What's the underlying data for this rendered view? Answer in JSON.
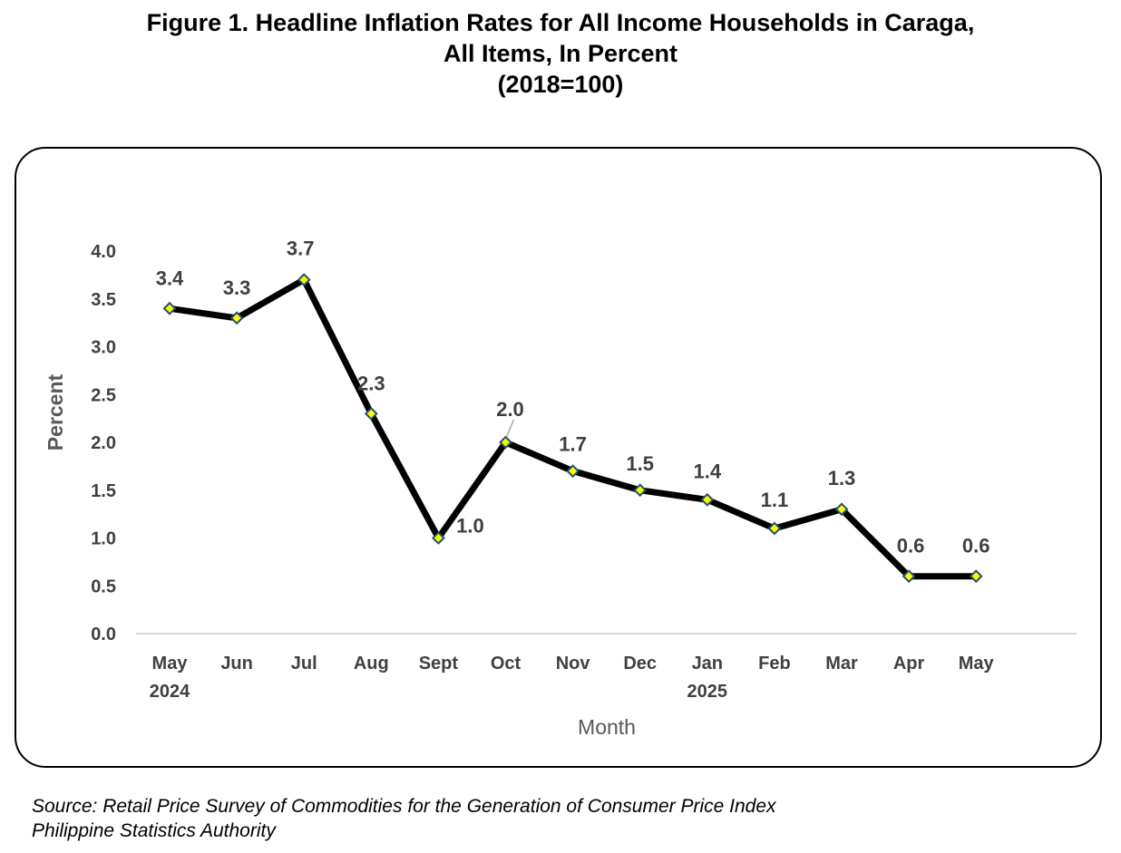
{
  "title": {
    "line1": "Figure 1. Headline Inflation Rates for All Income Households in Caraga,",
    "line2": "All Items, In Percent",
    "line3": "(2018=100)"
  },
  "source": {
    "line1": "Source: Retail Price Survey of Commodities for the Generation of Consumer Price Index",
    "line2": "Philippine Statistics Authority"
  },
  "chart_data": {
    "type": "line",
    "categories": [
      "May",
      "Jun",
      "Jul",
      "Aug",
      "Sept",
      "Oct",
      "Nov",
      "Dec",
      "Jan",
      "Feb",
      "Mar",
      "Apr",
      "May"
    ],
    "category_sublabels": [
      "2024",
      "",
      "",
      "",
      "",
      "",
      "",
      "",
      "2025",
      "",
      "",
      "",
      ""
    ],
    "values": [
      3.4,
      3.3,
      3.7,
      2.3,
      1.0,
      2.0,
      1.7,
      1.5,
      1.4,
      1.1,
      1.3,
      0.6,
      0.6
    ],
    "data_labels": [
      "3.4",
      "3.3",
      "3.7",
      "2.3",
      "1.0",
      "2.0",
      "1.7",
      "1.5",
      "1.4",
      "1.1",
      "1.3",
      "0.6",
      "0.6"
    ],
    "ylabel": "Percent",
    "xlabel": "Month",
    "ylim": [
      0.0,
      4.0
    ],
    "yticks": [
      "0.0",
      "0.5",
      "1.0",
      "1.5",
      "2.0",
      "2.5",
      "3.0",
      "3.5",
      "4.0"
    ],
    "grid": false,
    "legend": "none",
    "colors": {
      "line": "#000000",
      "marker_fill": "#FFFF00",
      "marker_stroke": "#1F4E79",
      "text": "#404040",
      "axis": "#D9D9D9"
    }
  }
}
